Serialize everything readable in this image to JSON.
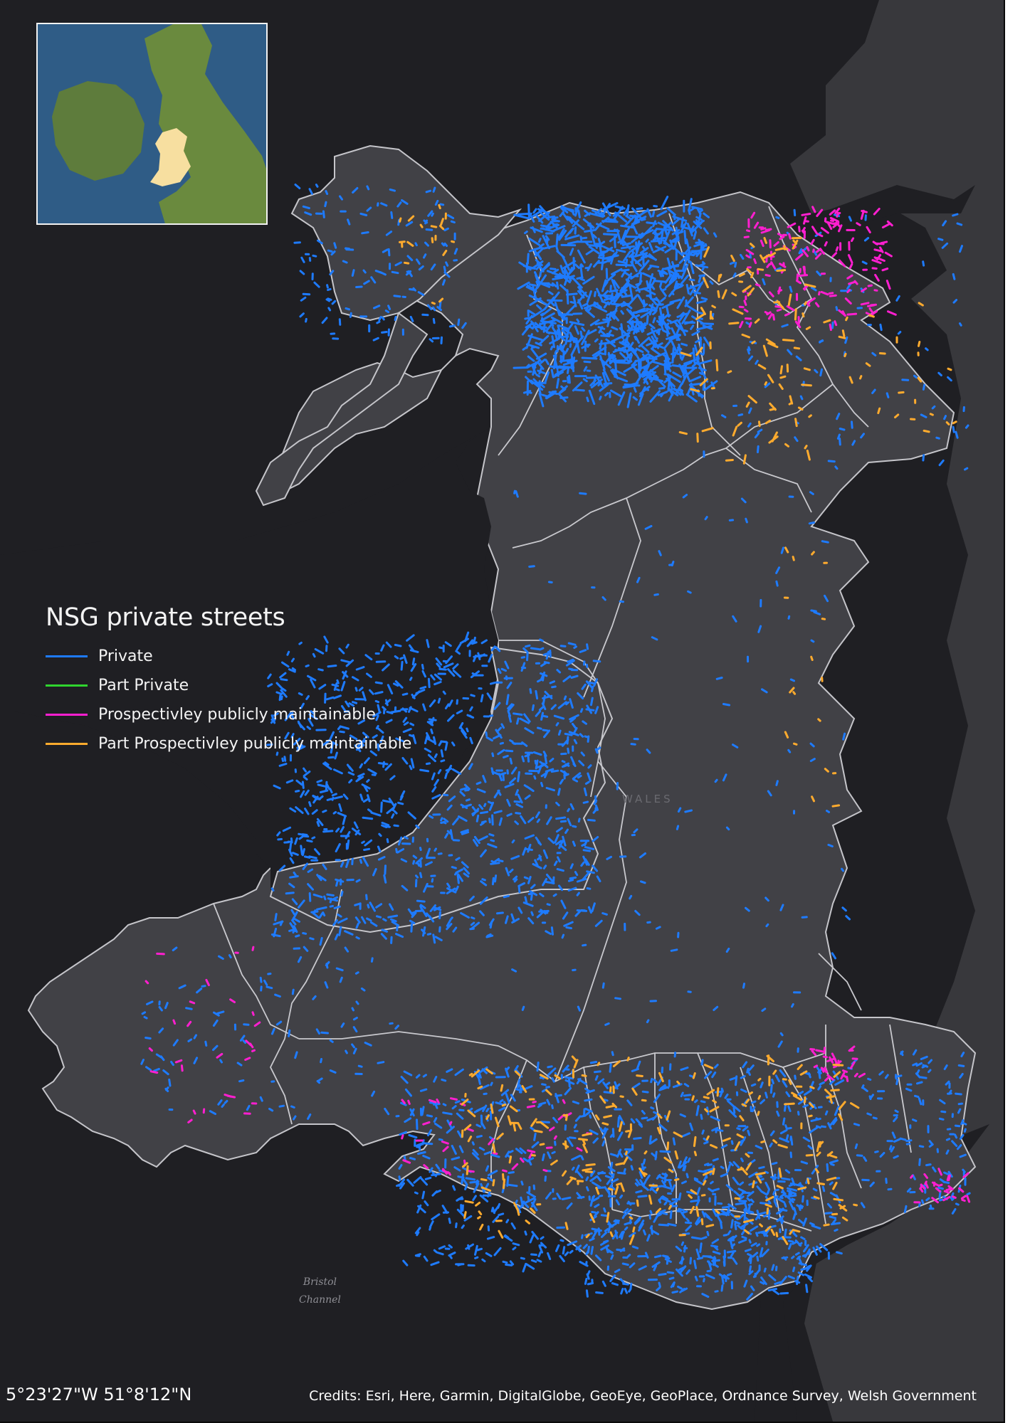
{
  "map": {
    "legend": {
      "title": "NSG private streets",
      "items": [
        {
          "label": "Private",
          "color": "#1e7bff"
        },
        {
          "label": "Part Private",
          "color": "#2fd42f"
        },
        {
          "label": "Prospectivley publicly maintainable",
          "color": "#ff1fd0"
        },
        {
          "label": "Part Prospectivley publicly maintainable",
          "color": "#ffab2e"
        }
      ]
    },
    "coordinates": "5°23'27\"W 51°8'12\"N",
    "credits": "Credits: Esri, Here, Garmin, DigitalGlobe, GeoEye, GeoPlace, Ordnance Survey, Welsh Government",
    "labels": {
      "country": "WALES",
      "water_line1": "Bristol",
      "water_line2": "Channel"
    },
    "colors": {
      "background": "#1f1f23",
      "land": "#414146",
      "boundary": "#bdbdc2",
      "inset_highlight": "#f7dfa0"
    }
  }
}
